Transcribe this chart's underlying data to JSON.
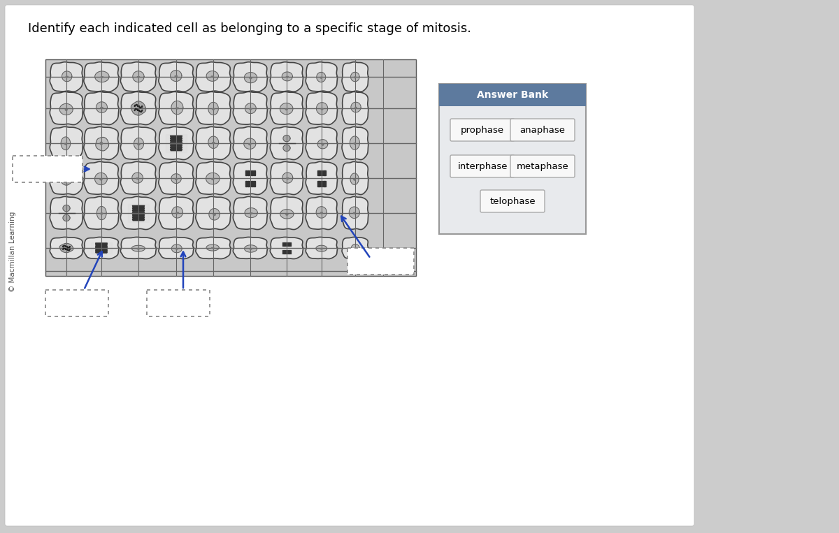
{
  "title": "Identify each indicated cell as belonging to a specific stage of mitosis.",
  "copyright": "© Macmillan Learning",
  "answer_bank_title": "Answer Bank",
  "answer_bank_header_color": "#5d7a9e",
  "answer_bank_bg_color": "#e8eaed",
  "answer_bank_border_color": "#999999",
  "answer_bank_items": [
    "prophase",
    "anaphase",
    "interphase",
    "metaphase",
    "telophase"
  ],
  "bg_color": "#cccccc",
  "card_bg_color": "#ffffff",
  "image_bg_color": "#c8c8c8"
}
